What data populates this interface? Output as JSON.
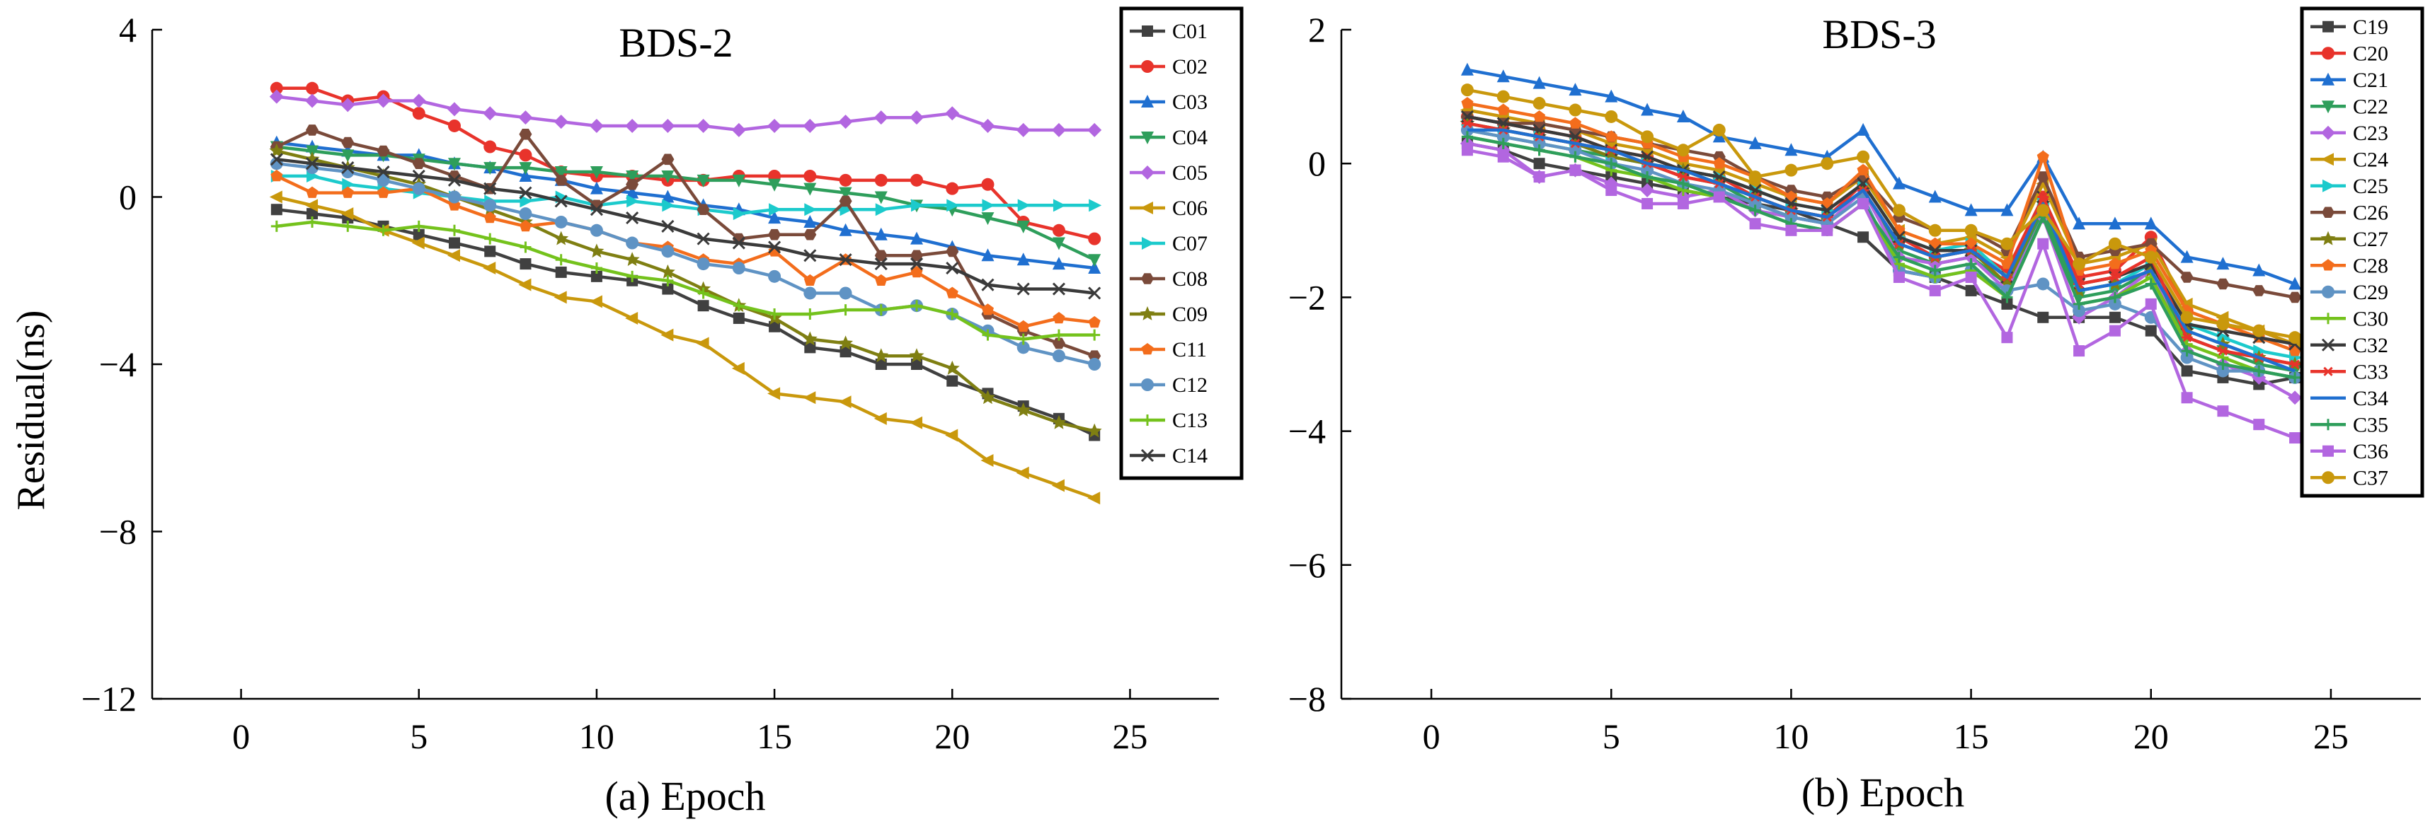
{
  "ylabel": "Residual(ns)",
  "chart_data": [
    {
      "type": "line",
      "title": "BDS-2",
      "xlabel": "(a) Epoch",
      "ylabel": "Residual(ns)",
      "xlim": [
        -2.5,
        27.5
      ],
      "ylim": [
        -12,
        4
      ],
      "xticks": [
        0,
        5,
        10,
        15,
        20,
        25
      ],
      "yticks": [
        -12,
        -8,
        -4,
        0,
        4
      ],
      "ytick_labels": [
        "−12",
        "−8",
        "−4",
        "0",
        "4"
      ],
      "x": [
        1,
        2,
        3,
        4,
        5,
        6,
        7,
        8,
        9,
        10,
        11,
        12,
        13,
        14,
        15,
        16,
        17,
        18,
        19,
        20,
        21,
        22,
        23,
        24
      ],
      "legend_position": "top-right",
      "series": [
        {
          "name": "C01",
          "color": "#404040",
          "marker": "square",
          "values": [
            -0.3,
            -0.4,
            -0.5,
            -0.7,
            -0.9,
            -1.1,
            -1.3,
            -1.6,
            -1.8,
            -1.9,
            -2.0,
            -2.2,
            -2.6,
            -2.9,
            -3.1,
            -3.6,
            -3.7,
            -4.0,
            -4.0,
            -4.4,
            -4.7,
            -5.0,
            -5.3,
            -5.7
          ]
        },
        {
          "name": "C02",
          "color": "#e8332b",
          "marker": "circle",
          "values": [
            2.6,
            2.6,
            2.3,
            2.4,
            2.0,
            1.7,
            1.2,
            1.0,
            0.6,
            0.5,
            0.5,
            0.4,
            0.4,
            0.5,
            0.5,
            0.5,
            0.4,
            0.4,
            0.4,
            0.2,
            0.3,
            -0.6,
            -0.8,
            -1.0
          ]
        },
        {
          "name": "C03",
          "color": "#1f6fd0",
          "marker": "triangle",
          "values": [
            1.3,
            1.2,
            1.1,
            1.0,
            1.0,
            0.8,
            0.7,
            0.5,
            0.4,
            0.2,
            0.1,
            0.0,
            -0.2,
            -0.3,
            -0.5,
            -0.6,
            -0.8,
            -0.9,
            -1.0,
            -1.2,
            -1.4,
            -1.5,
            -1.6,
            -1.7
          ]
        },
        {
          "name": "C04",
          "color": "#2e9e5b",
          "marker": "triangle-down",
          "values": [
            1.2,
            1.1,
            1.0,
            1.0,
            0.9,
            0.8,
            0.7,
            0.7,
            0.6,
            0.6,
            0.5,
            0.5,
            0.4,
            0.4,
            0.3,
            0.2,
            0.1,
            0.0,
            -0.2,
            -0.3,
            -0.5,
            -0.7,
            -1.1,
            -1.5
          ]
        },
        {
          "name": "C05",
          "color": "#b266e0",
          "marker": "diamond",
          "values": [
            2.4,
            2.3,
            2.2,
            2.3,
            2.3,
            2.1,
            2.0,
            1.9,
            1.8,
            1.7,
            1.7,
            1.7,
            1.7,
            1.6,
            1.7,
            1.7,
            1.8,
            1.9,
            1.9,
            2.0,
            1.7,
            1.6,
            1.6,
            1.6
          ]
        },
        {
          "name": "C06",
          "color": "#c9980c",
          "marker": "triangle-left",
          "values": [
            0.0,
            -0.2,
            -0.4,
            -0.8,
            -1.1,
            -1.4,
            -1.7,
            -2.1,
            -2.4,
            -2.5,
            -2.9,
            -3.3,
            -3.5,
            -4.1,
            -4.7,
            -4.8,
            -4.9,
            -5.3,
            -5.4,
            -5.7,
            -6.3,
            -6.6,
            -6.9,
            -7.2
          ]
        },
        {
          "name": "C07",
          "color": "#1ccacc",
          "marker": "triangle-right",
          "values": [
            0.5,
            0.5,
            0.3,
            0.2,
            0.1,
            0.0,
            -0.1,
            -0.1,
            0.0,
            -0.2,
            -0.1,
            -0.2,
            -0.3,
            -0.4,
            -0.3,
            -0.3,
            -0.3,
            -0.3,
            -0.2,
            -0.2,
            -0.2,
            -0.2,
            -0.2,
            -0.2
          ]
        },
        {
          "name": "C08",
          "color": "#7a4a3a",
          "marker": "hexagon",
          "values": [
            1.2,
            1.6,
            1.3,
            1.1,
            0.8,
            0.5,
            0.2,
            1.5,
            0.4,
            -0.2,
            0.3,
            0.9,
            -0.3,
            -1.0,
            -0.9,
            -0.9,
            -0.1,
            -1.4,
            -1.4,
            -1.3,
            -2.8,
            -3.2,
            -3.5,
            -3.8
          ]
        },
        {
          "name": "C09",
          "color": "#7f7f12",
          "marker": "star",
          "values": [
            1.1,
            0.9,
            0.7,
            0.5,
            0.3,
            0.0,
            -0.3,
            -0.6,
            -1.0,
            -1.3,
            -1.5,
            -1.8,
            -2.2,
            -2.6,
            -2.9,
            -3.4,
            -3.5,
            -3.8,
            -3.8,
            -4.1,
            -4.8,
            -5.1,
            -5.4,
            -5.6
          ]
        },
        {
          "name": "C11",
          "color": "#f36d1c",
          "marker": "pentagon",
          "values": [
            0.5,
            0.1,
            0.1,
            0.1,
            0.2,
            -0.2,
            -0.5,
            -0.7,
            -0.6,
            -0.8,
            -1.1,
            -1.2,
            -1.5,
            -1.6,
            -1.3,
            -2.0,
            -1.5,
            -2.0,
            -1.8,
            -2.3,
            -2.7,
            -3.1,
            -2.9,
            -3.0
          ]
        },
        {
          "name": "C12",
          "color": "#5f93c4",
          "marker": "circle",
          "values": [
            0.8,
            0.7,
            0.6,
            0.4,
            0.2,
            0.0,
            -0.2,
            -0.4,
            -0.6,
            -0.8,
            -1.1,
            -1.3,
            -1.6,
            -1.7,
            -1.9,
            -2.3,
            -2.3,
            -2.7,
            -2.6,
            -2.8,
            -3.2,
            -3.6,
            -3.8,
            -4.0
          ]
        },
        {
          "name": "C13",
          "color": "#74c21c",
          "marker": "plus",
          "values": [
            -0.7,
            -0.6,
            -0.7,
            -0.8,
            -0.7,
            -0.8,
            -1.0,
            -1.2,
            -1.5,
            -1.7,
            -1.9,
            -2.0,
            -2.3,
            -2.6,
            -2.8,
            -2.8,
            -2.7,
            -2.7,
            -2.6,
            -2.8,
            -3.3,
            -3.4,
            -3.3,
            -3.3
          ]
        },
        {
          "name": "C14",
          "color": "#3a3a3a",
          "marker": "x",
          "values": [
            0.9,
            0.8,
            0.7,
            0.6,
            0.5,
            0.4,
            0.2,
            0.1,
            -0.1,
            -0.3,
            -0.5,
            -0.7,
            -1.0,
            -1.1,
            -1.2,
            -1.4,
            -1.5,
            -1.6,
            -1.6,
            -1.7,
            -2.1,
            -2.2,
            -2.2,
            -2.3
          ]
        }
      ]
    },
    {
      "type": "line",
      "title": "BDS-3",
      "xlabel": "(b) Epoch",
      "ylabel": "",
      "xlim": [
        -2.5,
        27.5
      ],
      "ylim": [
        -8,
        2
      ],
      "xticks": [
        0,
        5,
        10,
        15,
        20,
        25
      ],
      "yticks": [
        -8,
        -6,
        -4,
        -2,
        0,
        2
      ],
      "ytick_labels": [
        "−8",
        "−6",
        "−4",
        "−2",
        "0",
        "2"
      ],
      "x": [
        1,
        2,
        3,
        4,
        5,
        6,
        7,
        8,
        9,
        10,
        11,
        12,
        13,
        14,
        15,
        16,
        17,
        18,
        19,
        20,
        21,
        22,
        23,
        24
      ],
      "legend_position": "top-right",
      "series": [
        {
          "name": "C19",
          "color": "#404040",
          "marker": "square",
          "values": [
            0.3,
            0.2,
            0.0,
            -0.1,
            -0.2,
            -0.3,
            -0.4,
            -0.5,
            -0.6,
            -0.7,
            -0.9,
            -1.1,
            -1.6,
            -1.7,
            -1.9,
            -2.1,
            -2.3,
            -2.3,
            -2.3,
            -2.5,
            -3.1,
            -3.2,
            -3.3,
            -3.2
          ]
        },
        {
          "name": "C20",
          "color": "#e8332b",
          "marker": "circle",
          "values": [
            0.7,
            0.6,
            0.5,
            0.4,
            0.2,
            0.1,
            -0.1,
            -0.2,
            -0.5,
            -0.7,
            -0.8,
            -0.3,
            -1.1,
            -1.4,
            -1.3,
            -1.6,
            -0.5,
            -1.7,
            -1.6,
            -1.1,
            -2.2,
            -2.4,
            -2.5,
            -2.7
          ]
        },
        {
          "name": "C21",
          "color": "#1f6fd0",
          "marker": "triangle",
          "values": [
            1.4,
            1.3,
            1.2,
            1.1,
            1.0,
            0.8,
            0.7,
            0.4,
            0.3,
            0.2,
            0.1,
            0.5,
            -0.3,
            -0.5,
            -0.7,
            -0.7,
            0.1,
            -0.9,
            -0.9,
            -0.9,
            -1.4,
            -1.5,
            -1.6,
            -1.8
          ]
        },
        {
          "name": "C22",
          "color": "#2e9e5b",
          "marker": "triangle-down",
          "values": [
            0.5,
            0.4,
            0.3,
            0.2,
            0.1,
            0.0,
            -0.2,
            -0.3,
            -0.6,
            -0.8,
            -0.9,
            -0.4,
            -1.3,
            -1.5,
            -1.4,
            -1.8,
            -0.7,
            -2.0,
            -1.9,
            -1.6,
            -2.6,
            -2.8,
            -3.0,
            -3.1
          ]
        },
        {
          "name": "C23",
          "color": "#b266e0",
          "marker": "diamond",
          "values": [
            0.3,
            0.2,
            -0.2,
            -0.1,
            -0.3,
            -0.4,
            -0.5,
            -0.4,
            -0.7,
            -0.8,
            -0.9,
            -0.4,
            -1.4,
            -1.5,
            -1.4,
            -1.9,
            -0.8,
            -2.3,
            -2.0,
            -1.6,
            -2.8,
            -3.0,
            -3.2,
            -3.5
          ]
        },
        {
          "name": "C24",
          "color": "#c9980c",
          "marker": "triangle-left",
          "values": [
            0.8,
            0.7,
            0.6,
            0.5,
            0.3,
            0.2,
            0.0,
            -0.1,
            -0.3,
            -0.5,
            -0.6,
            -0.2,
            -1.0,
            -1.2,
            -1.1,
            -1.4,
            -0.3,
            -1.5,
            -1.4,
            -1.2,
            -2.1,
            -2.3,
            -2.5,
            -2.7
          ]
        },
        {
          "name": "C25",
          "color": "#1ccacc",
          "marker": "triangle-right",
          "values": [
            0.6,
            0.5,
            0.4,
            0.3,
            0.1,
            0.0,
            -0.1,
            -0.2,
            -0.4,
            -0.6,
            -0.7,
            -0.3,
            -1.1,
            -1.3,
            -1.2,
            -1.7,
            -0.6,
            -1.9,
            -1.8,
            -1.5,
            -2.4,
            -2.6,
            -2.8,
            -2.9
          ]
        },
        {
          "name": "C26",
          "color": "#7a4a3a",
          "marker": "hexagon",
          "values": [
            0.7,
            0.6,
            0.6,
            0.5,
            0.4,
            0.3,
            0.2,
            0.1,
            -0.2,
            -0.4,
            -0.5,
            -0.2,
            -0.8,
            -1.0,
            -1.0,
            -1.3,
            -0.2,
            -1.4,
            -1.3,
            -1.2,
            -1.7,
            -1.8,
            -1.9,
            -2.0
          ]
        },
        {
          "name": "C27",
          "color": "#7f7f12",
          "marker": "star",
          "values": [
            0.6,
            0.5,
            0.4,
            0.3,
            0.1,
            0.0,
            -0.1,
            -0.3,
            -0.5,
            -0.7,
            -0.8,
            -0.4,
            -1.2,
            -1.4,
            -1.3,
            -1.8,
            -0.6,
            -1.9,
            -1.8,
            -1.6,
            -2.5,
            -2.7,
            -2.9,
            -3.0
          ]
        },
        {
          "name": "C28",
          "color": "#f36d1c",
          "marker": "pentagon",
          "values": [
            0.9,
            0.8,
            0.7,
            0.6,
            0.4,
            0.3,
            0.1,
            0.0,
            -0.2,
            -0.5,
            -0.6,
            -0.1,
            -1.0,
            -1.2,
            -1.2,
            -1.5,
            0.1,
            -1.6,
            -1.5,
            -1.3,
            -2.2,
            -2.4,
            -2.6,
            -2.8
          ]
        },
        {
          "name": "C29",
          "color": "#5f93c4",
          "marker": "circle",
          "values": [
            0.5,
            0.4,
            0.3,
            0.2,
            0.0,
            -0.1,
            -0.3,
            -0.4,
            -0.6,
            -0.8,
            -0.9,
            -0.5,
            -1.6,
            -1.7,
            -1.6,
            -1.9,
            -1.8,
            -2.2,
            -2.1,
            -2.3,
            -2.9,
            -3.1,
            -3.1,
            -3.2
          ]
        },
        {
          "name": "C30",
          "color": "#74c21c",
          "marker": "plus",
          "values": [
            0.4,
            0.3,
            0.2,
            0.1,
            -0.1,
            -0.2,
            -0.4,
            -0.5,
            -0.7,
            -0.9,
            -1.0,
            -0.6,
            -1.5,
            -1.7,
            -1.6,
            -2.0,
            -0.8,
            -2.1,
            -2.0,
            -1.7,
            -2.7,
            -2.9,
            -3.1,
            -3.2
          ]
        },
        {
          "name": "C32",
          "color": "#3a3a3a",
          "marker": "x",
          "values": [
            0.7,
            0.6,
            0.5,
            0.4,
            0.2,
            0.1,
            -0.1,
            -0.2,
            -0.4,
            -0.6,
            -0.7,
            -0.3,
            -1.1,
            -1.3,
            -1.3,
            -1.7,
            -0.5,
            -1.8,
            -1.7,
            -1.5,
            -2.4,
            -2.5,
            -2.6,
            -2.7
          ]
        },
        {
          "name": "C33",
          "color": "#e8332b",
          "marker": "asterisk",
          "values": [
            0.6,
            0.5,
            0.4,
            0.3,
            0.2,
            0.0,
            -0.2,
            -0.3,
            -0.5,
            -0.7,
            -0.8,
            -0.4,
            -1.2,
            -1.4,
            -1.3,
            -1.7,
            -0.5,
            -1.8,
            -1.7,
            -1.4,
            -2.6,
            -2.8,
            -2.9,
            -3.0
          ]
        },
        {
          "name": "C34",
          "color": "#1f6fd0",
          "marker": "none",
          "values": [
            0.5,
            0.5,
            0.4,
            0.3,
            0.2,
            0.0,
            -0.1,
            -0.3,
            -0.5,
            -0.7,
            -0.8,
            -0.4,
            -1.2,
            -1.4,
            -1.3,
            -1.7,
            -0.6,
            -1.9,
            -1.8,
            -1.6,
            -2.5,
            -2.7,
            -2.9,
            -3.1
          ]
        },
        {
          "name": "C35",
          "color": "#2e9e5b",
          "marker": "plus",
          "values": [
            0.4,
            0.3,
            0.2,
            0.1,
            0.0,
            -0.2,
            -0.3,
            -0.5,
            -0.7,
            -0.9,
            -1.0,
            -0.6,
            -1.4,
            -1.6,
            -1.5,
            -2.0,
            -0.8,
            -2.1,
            -2.0,
            -1.8,
            -2.8,
            -3.0,
            -3.1,
            -3.2
          ]
        },
        {
          "name": "C36",
          "color": "#b266e0",
          "marker": "square",
          "values": [
            0.2,
            0.1,
            -0.2,
            -0.1,
            -0.4,
            -0.6,
            -0.6,
            -0.5,
            -0.9,
            -1.0,
            -1.0,
            -0.6,
            -1.7,
            -1.9,
            -1.7,
            -2.6,
            -1.2,
            -2.8,
            -2.5,
            -2.1,
            -3.5,
            -3.7,
            -3.9,
            -4.1
          ]
        },
        {
          "name": "C37",
          "color": "#c9980c",
          "marker": "circle",
          "values": [
            1.1,
            1.0,
            0.9,
            0.8,
            0.7,
            0.4,
            0.2,
            0.5,
            -0.2,
            -0.1,
            0.0,
            0.1,
            -0.7,
            -1.0,
            -1.0,
            -1.2,
            -0.7,
            -1.5,
            -1.2,
            -1.4,
            -2.3,
            -2.4,
            -2.5,
            -2.6
          ]
        }
      ]
    }
  ]
}
